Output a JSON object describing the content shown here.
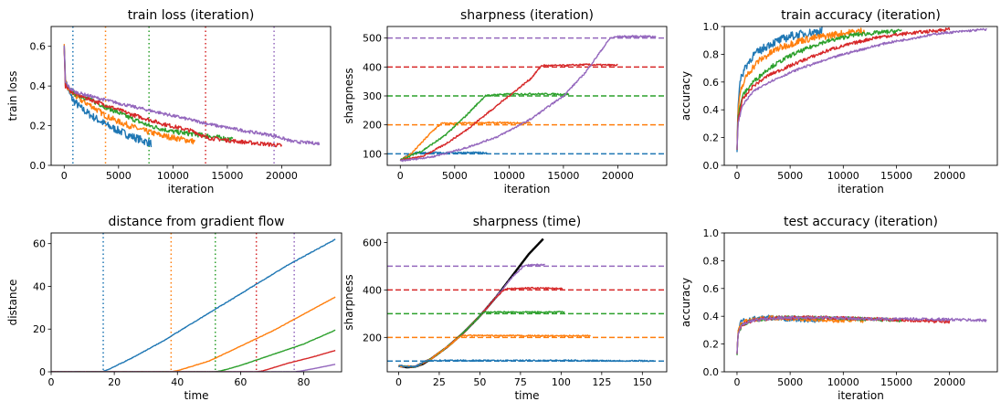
{
  "colors": {
    "blue": "#1f77b4",
    "orange": "#ff7f0e",
    "green": "#2ca02c",
    "red": "#d62728",
    "purple": "#9467bd",
    "black": "#000000"
  },
  "chart_data": [
    {
      "id": "train-loss",
      "type": "line",
      "title": "train loss (iteration)",
      "xlabel": "iteration",
      "ylabel": "train loss",
      "xlim": [
        -1200,
        24500
      ],
      "ylim": [
        0,
        0.7
      ],
      "xticks": [
        0,
        5000,
        10000,
        15000,
        20000
      ],
      "yticks": [
        0.0,
        0.2,
        0.4,
        0.6
      ],
      "ytick_format": 1,
      "vlines": [
        {
          "x": 800,
          "color": "blue",
          "style": "dotted"
        },
        {
          "x": 3800,
          "color": "orange",
          "style": "dotted"
        },
        {
          "x": 7800,
          "color": "green",
          "style": "dotted"
        },
        {
          "x": 13000,
          "color": "red",
          "style": "dotted"
        },
        {
          "x": 19300,
          "color": "purple",
          "style": "dotted"
        }
      ],
      "series": [
        {
          "color": "blue",
          "noise": 0.02,
          "x": [
            0,
            100,
            400,
            800,
            1500,
            2500,
            4000,
            6000,
            8000
          ],
          "y": [
            0.6,
            0.44,
            0.37,
            0.33,
            0.29,
            0.25,
            0.2,
            0.15,
            0.11
          ]
        },
        {
          "color": "orange",
          "noise": 0.015,
          "x": [
            0,
            100,
            400,
            800,
            1500,
            2500,
            3800,
            5000,
            7000,
            9000,
            12000
          ],
          "y": [
            0.6,
            0.42,
            0.38,
            0.36,
            0.33,
            0.3,
            0.25,
            0.22,
            0.18,
            0.15,
            0.12
          ]
        },
        {
          "color": "green",
          "noise": 0.012,
          "x": [
            0,
            100,
            500,
            1000,
            2000,
            4000,
            6000,
            7800,
            10000,
            13000,
            15500
          ],
          "y": [
            0.6,
            0.41,
            0.38,
            0.36,
            0.34,
            0.29,
            0.24,
            0.2,
            0.17,
            0.15,
            0.13
          ]
        },
        {
          "color": "red",
          "noise": 0.01,
          "x": [
            0,
            100,
            500,
            1000,
            3000,
            6000,
            9000,
            12000,
            13000,
            16000,
            18000,
            20000
          ],
          "y": [
            0.6,
            0.4,
            0.38,
            0.36,
            0.32,
            0.26,
            0.21,
            0.17,
            0.14,
            0.12,
            0.11,
            0.1
          ]
        },
        {
          "color": "purple",
          "noise": 0.008,
          "x": [
            0,
            100,
            500,
            1000,
            3000,
            6000,
            10000,
            14000,
            17000,
            19300,
            21000,
            23500
          ],
          "y": [
            0.6,
            0.42,
            0.39,
            0.37,
            0.34,
            0.3,
            0.25,
            0.2,
            0.17,
            0.15,
            0.12,
            0.11
          ]
        }
      ]
    },
    {
      "id": "sharpness-iteration",
      "type": "line",
      "title": "sharpness (iteration)",
      "xlabel": "iteration",
      "ylabel": "sharpness",
      "xlim": [
        -1200,
        24500
      ],
      "ylim": [
        60,
        540
      ],
      "xticks": [
        0,
        5000,
        10000,
        15000,
        20000
      ],
      "yticks": [
        100,
        200,
        300,
        400,
        500
      ],
      "hlines": [
        {
          "y": 100,
          "color": "blue",
          "style": "dashed"
        },
        {
          "y": 200,
          "color": "orange",
          "style": "dashed"
        },
        {
          "y": 300,
          "color": "green",
          "style": "dashed"
        },
        {
          "y": 400,
          "color": "red",
          "style": "dashed"
        },
        {
          "y": 500,
          "color": "purple",
          "style": "dashed"
        }
      ],
      "series": [
        {
          "color": "blue",
          "noise": 3,
          "x": [
            0,
            300,
            800,
            1500,
            3000,
            5000,
            8000
          ],
          "y": [
            80,
            85,
            100,
            104,
            103,
            104,
            103
          ]
        },
        {
          "color": "orange",
          "noise": 3,
          "x": [
            0,
            1000,
            2000,
            3000,
            3800,
            5000,
            8000,
            12000
          ],
          "y": [
            78,
            100,
            140,
            180,
            205,
            205,
            207,
            206
          ]
        },
        {
          "color": "green",
          "noise": 3,
          "x": [
            0,
            2000,
            4000,
            6000,
            7800,
            9000,
            12000,
            15500
          ],
          "y": [
            78,
            110,
            160,
            230,
            300,
            305,
            307,
            306
          ]
        },
        {
          "color": "red",
          "noise": 3,
          "x": [
            0,
            2000,
            4000,
            6000,
            8000,
            10000,
            12000,
            13000,
            15000,
            17000,
            20000
          ],
          "y": [
            78,
            90,
            130,
            180,
            240,
            300,
            360,
            405,
            405,
            408,
            406
          ]
        },
        {
          "color": "purple",
          "noise": 3,
          "x": [
            0,
            3000,
            6000,
            9000,
            12000,
            15000,
            17000,
            19300,
            20000,
            22000,
            23500
          ],
          "y": [
            75,
            90,
            120,
            160,
            220,
            300,
            380,
            500,
            505,
            506,
            505
          ]
        }
      ]
    },
    {
      "id": "train-accuracy",
      "type": "line",
      "title": "train accuracy (iteration)",
      "xlabel": "iteration",
      "ylabel": "accuracy",
      "xlim": [
        -1200,
        24500
      ],
      "ylim": [
        0,
        1.0
      ],
      "xticks": [
        0,
        5000,
        10000,
        15000,
        20000
      ],
      "yticks": [
        0.0,
        0.2,
        0.4,
        0.6,
        0.8,
        1.0
      ],
      "ytick_format": 1,
      "series": [
        {
          "color": "blue",
          "noise": 0.03,
          "x": [
            0,
            100,
            300,
            700,
            1500,
            3000,
            5000,
            8000
          ],
          "y": [
            0.12,
            0.45,
            0.6,
            0.7,
            0.79,
            0.87,
            0.93,
            0.97
          ]
        },
        {
          "color": "orange",
          "noise": 0.025,
          "x": [
            0,
            100,
            400,
            1000,
            2000,
            3800,
            6000,
            9000,
            12000
          ],
          "y": [
            0.12,
            0.4,
            0.55,
            0.66,
            0.75,
            0.84,
            0.9,
            0.94,
            0.97
          ]
        },
        {
          "color": "green",
          "noise": 0.015,
          "x": [
            0,
            100,
            500,
            1500,
            3000,
            5000,
            7800,
            11000,
            15500
          ],
          "y": [
            0.12,
            0.35,
            0.5,
            0.6,
            0.7,
            0.79,
            0.88,
            0.94,
            0.97
          ]
        },
        {
          "color": "red",
          "noise": 0.012,
          "x": [
            0,
            100,
            500,
            1500,
            3000,
            6000,
            9000,
            13000,
            16000,
            20000
          ],
          "y": [
            0.12,
            0.33,
            0.47,
            0.57,
            0.65,
            0.75,
            0.84,
            0.92,
            0.95,
            0.98
          ]
        },
        {
          "color": "purple",
          "noise": 0.008,
          "x": [
            0,
            100,
            500,
            1500,
            3000,
            6000,
            10000,
            14000,
            19000,
            23500
          ],
          "y": [
            0.12,
            0.3,
            0.43,
            0.53,
            0.6,
            0.7,
            0.8,
            0.88,
            0.95,
            0.98
          ]
        }
      ]
    },
    {
      "id": "distance-gradient-flow",
      "type": "line",
      "title": "distance from gradient flow",
      "xlabel": "time",
      "ylabel": "distance",
      "xlim": [
        0,
        92
      ],
      "ylim": [
        0,
        65
      ],
      "xticks": [
        0,
        20,
        40,
        60,
        80
      ],
      "yticks": [
        0,
        20,
        40,
        60
      ],
      "vlines": [
        {
          "x": 16.5,
          "color": "blue",
          "style": "dotted"
        },
        {
          "x": 38,
          "color": "orange",
          "style": "dotted"
        },
        {
          "x": 52,
          "color": "green",
          "style": "dotted"
        },
        {
          "x": 65,
          "color": "red",
          "style": "dotted"
        },
        {
          "x": 77,
          "color": "purple",
          "style": "dotted"
        }
      ],
      "series": [
        {
          "color": "blue",
          "noise": 0.15,
          "x": [
            0,
            16,
            18,
            25,
            35,
            45,
            55,
            65,
            75,
            90
          ],
          "y": [
            0,
            0,
            1,
            6,
            14,
            23,
            32,
            41,
            50,
            62
          ]
        },
        {
          "color": "orange",
          "noise": 0.1,
          "x": [
            0,
            38,
            40,
            50,
            60,
            70,
            80,
            90
          ],
          "y": [
            0,
            0,
            0.5,
            5,
            12,
            19,
            27,
            35
          ]
        },
        {
          "color": "green",
          "noise": 0.08,
          "x": [
            0,
            52,
            54,
            60,
            70,
            80,
            90
          ],
          "y": [
            0,
            0,
            0.5,
            3,
            8,
            13,
            19.5
          ]
        },
        {
          "color": "red",
          "noise": 0.06,
          "x": [
            0,
            65,
            67,
            75,
            83,
            90
          ],
          "y": [
            0,
            0,
            0.4,
            4,
            7,
            10
          ]
        },
        {
          "color": "purple",
          "noise": 0.04,
          "x": [
            0,
            77,
            79,
            85,
            90
          ],
          "y": [
            0,
            0,
            0.3,
            2,
            3.5
          ]
        }
      ]
    },
    {
      "id": "sharpness-time",
      "type": "line",
      "title": "sharpness (time)",
      "xlabel": "time",
      "ylabel": "sharpness",
      "xlim": [
        -7,
        165
      ],
      "ylim": [
        55,
        640
      ],
      "xticks": [
        0,
        25,
        50,
        75,
        100,
        125,
        150
      ],
      "yticks": [
        200,
        400,
        600
      ],
      "hlines": [
        {
          "y": 100,
          "color": "blue",
          "style": "dashed"
        },
        {
          "y": 200,
          "color": "orange",
          "style": "dashed"
        },
        {
          "y": 300,
          "color": "green",
          "style": "dashed"
        },
        {
          "y": 400,
          "color": "red",
          "style": "dashed"
        },
        {
          "y": 500,
          "color": "purple",
          "style": "dashed"
        }
      ],
      "series": [
        {
          "color": "black",
          "noise": 0,
          "x": [
            0,
            5,
            10,
            15,
            20,
            30,
            40,
            50,
            60,
            70,
            80,
            89
          ],
          "y": [
            80,
            74,
            76,
            88,
            110,
            160,
            220,
            290,
            370,
            460,
            550,
            615
          ]
        },
        {
          "color": "purple",
          "noise": 3,
          "x": [
            0,
            10,
            20,
            30,
            40,
            50,
            60,
            70,
            77,
            79,
            90
          ],
          "y": [
            80,
            76,
            110,
            160,
            220,
            290,
            370,
            455,
            500,
            505,
            506
          ]
        },
        {
          "color": "red",
          "noise": 3,
          "x": [
            0,
            10,
            20,
            30,
            40,
            50,
            60,
            65,
            67,
            80,
            101
          ],
          "y": [
            80,
            76,
            110,
            160,
            220,
            290,
            370,
            400,
            405,
            408,
            406
          ]
        },
        {
          "color": "green",
          "noise": 3,
          "x": [
            0,
            10,
            20,
            30,
            40,
            50,
            52,
            55,
            70,
            102
          ],
          "y": [
            80,
            76,
            110,
            160,
            220,
            290,
            305,
            307,
            306,
            307
          ]
        },
        {
          "color": "orange",
          "noise": 3,
          "x": [
            0,
            10,
            20,
            30,
            38,
            42,
            60,
            80,
            100,
            118
          ],
          "y": [
            80,
            76,
            110,
            160,
            205,
            208,
            207,
            207,
            206,
            207
          ]
        },
        {
          "color": "blue",
          "noise": 3,
          "x": [
            0,
            10,
            16,
            18,
            30,
            60,
            90,
            120,
            157
          ],
          "y": [
            80,
            76,
            98,
            103,
            103,
            102,
            103,
            102,
            101
          ]
        }
      ]
    },
    {
      "id": "test-accuracy",
      "type": "line",
      "title": "test accuracy (iteration)",
      "xlabel": "iteration",
      "ylabel": "accuracy",
      "xlim": [
        -1200,
        24500
      ],
      "ylim": [
        0,
        1.0
      ],
      "xticks": [
        0,
        5000,
        10000,
        15000,
        20000
      ],
      "yticks": [
        0.0,
        0.2,
        0.4,
        0.6,
        0.8,
        1.0
      ],
      "ytick_format": 1,
      "series": [
        {
          "color": "blue",
          "noise": 0.018,
          "x": [
            0,
            100,
            400,
            1000,
            3000,
            5000,
            8000
          ],
          "y": [
            0.12,
            0.3,
            0.36,
            0.38,
            0.39,
            0.38,
            0.37
          ]
        },
        {
          "color": "orange",
          "noise": 0.015,
          "x": [
            0,
            100,
            400,
            1000,
            3000,
            6000,
            9000,
            12000
          ],
          "y": [
            0.12,
            0.29,
            0.35,
            0.37,
            0.39,
            0.38,
            0.37,
            0.37
          ]
        },
        {
          "color": "green",
          "noise": 0.013,
          "x": [
            0,
            100,
            500,
            1500,
            4000,
            8000,
            12000,
            15500
          ],
          "y": [
            0.12,
            0.28,
            0.34,
            0.37,
            0.39,
            0.39,
            0.38,
            0.37
          ]
        },
        {
          "color": "red",
          "noise": 0.012,
          "x": [
            0,
            100,
            500,
            1500,
            4000,
            8000,
            13000,
            17000,
            20000
          ],
          "y": [
            0.12,
            0.28,
            0.34,
            0.37,
            0.39,
            0.39,
            0.38,
            0.37,
            0.36
          ]
        },
        {
          "color": "purple",
          "noise": 0.01,
          "x": [
            0,
            100,
            500,
            1500,
            4000,
            8000,
            13000,
            18000,
            23500
          ],
          "y": [
            0.12,
            0.28,
            0.34,
            0.37,
            0.39,
            0.39,
            0.38,
            0.38,
            0.37
          ]
        }
      ]
    }
  ]
}
